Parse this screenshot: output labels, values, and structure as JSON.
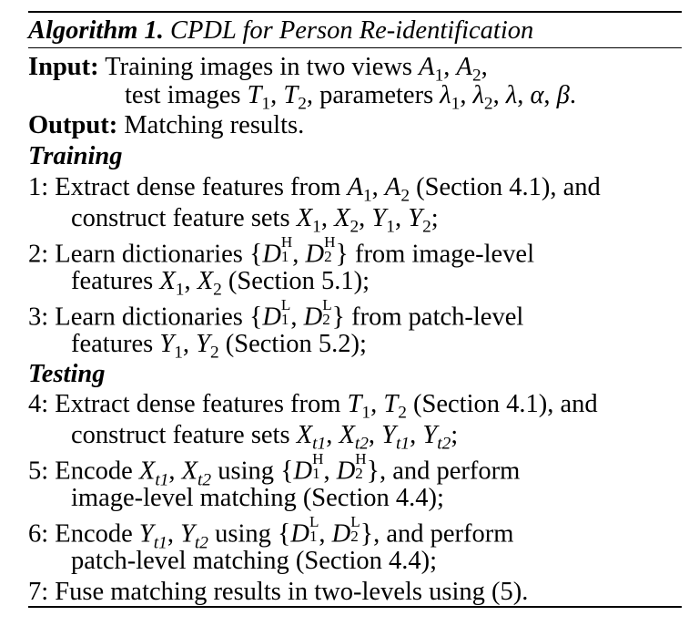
{
  "caption": {
    "label": "Algorithm 1.",
    "title": "CPDL for Person Re-identification"
  },
  "input": {
    "label": "Input:",
    "line1": "Training images in two views",
    "line2": "test images",
    "params": "parameters"
  },
  "output": {
    "label": "Output:",
    "text": "Matching results."
  },
  "sections": {
    "training": "Training",
    "testing": "Testing"
  },
  "steps": {
    "s1a": "1: Extract dense features from",
    "s1b": "(Section 4.1), and",
    "s1c": "construct feature sets",
    "s2a": "2: Learn dictionaries",
    "s2b": "from image-level",
    "s2c": "features",
    "s2d": "(Section 5.1);",
    "s3a": "3: Learn dictionaries",
    "s3b": "from patch-level",
    "s3c": "features",
    "s3d": "(Section 5.2);",
    "s4a": "4: Extract dense features from",
    "s4b": "(Section 4.1), and",
    "s4c": "construct feature sets",
    "s5a": "5: Encode",
    "s5b": "using",
    "s5c": ", and perform",
    "s5d": "image-level matching (Section 4.4);",
    "s6a": "6: Encode",
    "s6b": "using",
    "s6c": ", and perform",
    "s6d": "patch-level matching (Section 4.4);",
    "s7": "7: Fuse matching results in two-levels using (5)."
  }
}
